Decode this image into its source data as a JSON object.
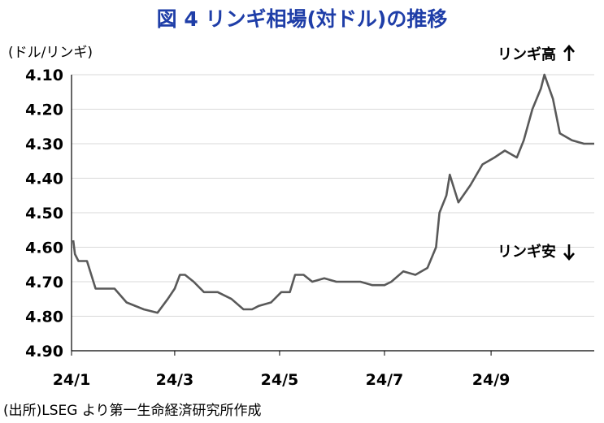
{
  "chart_data": {
    "type": "line",
    "title": "図 4  リンギ相場(対ドル)の推移",
    "ylabel": "(ドル/リンギ)",
    "ylim": [
      4.1,
      4.9
    ],
    "y_inverted": true,
    "y_ticks": [
      "4.10",
      "4.20",
      "4.30",
      "4.40",
      "4.50",
      "4.60",
      "4.70",
      "4.80",
      "4.90"
    ],
    "x_ticks": [
      "24/1",
      "24/3",
      "24/5",
      "24/7",
      "24/9"
    ],
    "x_range": [
      "2024-01-01",
      "2024-10-31"
    ],
    "grid": true,
    "annotations": [
      {
        "text": "リンギ高",
        "arrow": "up"
      },
      {
        "text": "リンギ安",
        "arrow": "down"
      }
    ],
    "line_color": "#595959",
    "x": [
      "2024-01-02",
      "2024-01-03",
      "2024-01-05",
      "2024-01-10",
      "2024-01-15",
      "2024-01-22",
      "2024-01-26",
      "2024-02-02",
      "2024-02-12",
      "2024-02-20",
      "2024-02-26",
      "2024-03-01",
      "2024-03-04",
      "2024-03-07",
      "2024-03-12",
      "2024-03-18",
      "2024-03-26",
      "2024-04-03",
      "2024-04-10",
      "2024-04-15",
      "2024-04-19",
      "2024-04-26",
      "2024-05-02",
      "2024-05-07",
      "2024-05-10",
      "2024-05-15",
      "2024-05-20",
      "2024-05-27",
      "2024-06-03",
      "2024-06-10",
      "2024-06-17",
      "2024-06-24",
      "2024-07-01",
      "2024-07-05",
      "2024-07-12",
      "2024-07-19",
      "2024-07-26",
      "2024-07-31",
      "2024-08-02",
      "2024-08-06",
      "2024-08-08",
      "2024-08-13",
      "2024-08-20",
      "2024-08-27",
      "2024-09-03",
      "2024-09-09",
      "2024-09-16",
      "2024-09-20",
      "2024-09-25",
      "2024-09-30",
      "2024-10-02",
      "2024-10-07",
      "2024-10-11",
      "2024-10-18",
      "2024-10-25",
      "2024-10-31"
    ],
    "values": [
      4.58,
      4.62,
      4.64,
      4.64,
      4.72,
      4.72,
      4.72,
      4.76,
      4.78,
      4.79,
      4.75,
      4.72,
      4.68,
      4.68,
      4.7,
      4.73,
      4.73,
      4.75,
      4.78,
      4.78,
      4.77,
      4.76,
      4.73,
      4.73,
      4.68,
      4.68,
      4.7,
      4.69,
      4.7,
      4.7,
      4.7,
      4.71,
      4.71,
      4.7,
      4.67,
      4.68,
      4.66,
      4.6,
      4.5,
      4.45,
      4.39,
      4.47,
      4.42,
      4.36,
      4.34,
      4.32,
      4.34,
      4.29,
      4.2,
      4.14,
      4.1,
      4.17,
      4.27,
      4.29,
      4.3,
      4.3
    ]
  },
  "source_text": "(出所)LSEG より第一生命経済研究所作成"
}
